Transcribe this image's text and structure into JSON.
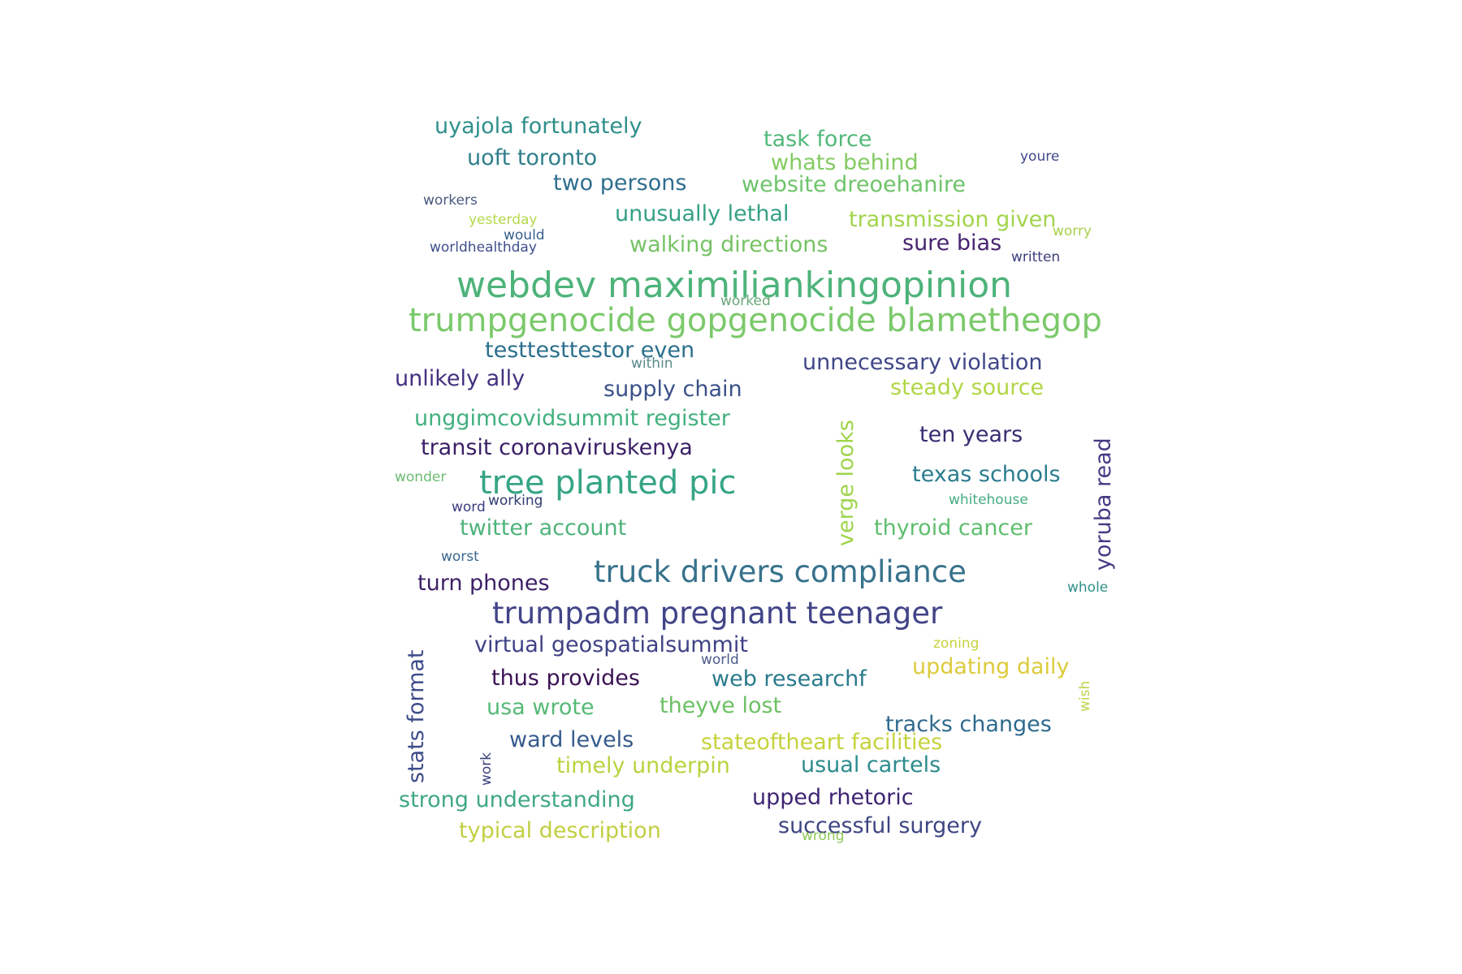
{
  "words": [
    {
      "text": "webdev maximiliankingopinion",
      "color": "#4db37a"
    },
    {
      "text": "trumpgenocide gopgenocide blamethegop",
      "color": "#7bc96b"
    },
    {
      "text": "truck drivers compliance",
      "color": "#37728c"
    },
    {
      "text": "trumpadm pregnant teenager",
      "color": "#414487"
    },
    {
      "text": "tree planted pic",
      "color": "#36a585"
    },
    {
      "text": "uyajola fortunately",
      "color": "#2f8f8b"
    },
    {
      "text": "task force",
      "color": "#52b87a"
    },
    {
      "text": "uoft toronto",
      "color": "#2f7f8c"
    },
    {
      "text": "whats behind",
      "color": "#84cb62"
    },
    {
      "text": "two persons",
      "color": "#2e6e8e"
    },
    {
      "text": "website dreoehanire",
      "color": "#6ec46a"
    },
    {
      "text": "youre",
      "color": "#3e4a89"
    },
    {
      "text": "workers",
      "color": "#48597f"
    },
    {
      "text": "unusually lethal",
      "color": "#35a085"
    },
    {
      "text": "transmission given",
      "color": "#a2d44c"
    },
    {
      "text": "yesterday",
      "color": "#b4d94a"
    },
    {
      "text": "would",
      "color": "#355f8d"
    },
    {
      "text": "worry",
      "color": "#a8d14c"
    },
    {
      "text": "worldhealthday",
      "color": "#3d4e8a"
    },
    {
      "text": "walking directions",
      "color": "#76c365"
    },
    {
      "text": "sure bias",
      "color": "#46246f"
    },
    {
      "text": "written",
      "color": "#3b3d7e"
    },
    {
      "text": "worked",
      "color": "#6aa87a"
    },
    {
      "text": "testtesttestor even",
      "color": "#2b6f8d"
    },
    {
      "text": "within",
      "color": "#5a8a8c"
    },
    {
      "text": "unnecessary violation",
      "color": "#3f4687"
    },
    {
      "text": "unlikely ally",
      "color": "#433080"
    },
    {
      "text": "supply chain",
      "color": "#3b5189"
    },
    {
      "text": "steady source",
      "color": "#b0d645"
    },
    {
      "text": "unggimcovidsummit register",
      "color": "#42b07e"
    },
    {
      "text": "transit coronaviruskenya",
      "color": "#3a1f66"
    },
    {
      "text": "verge looks",
      "color": "#9dd44a"
    },
    {
      "text": "ten years",
      "color": "#3a2c72"
    },
    {
      "text": "yoruba read",
      "color": "#443983"
    },
    {
      "text": "texas schools",
      "color": "#2a7c8e"
    },
    {
      "text": "wonder",
      "color": "#6dbb73"
    },
    {
      "text": "whitehouse",
      "color": "#45ad7f"
    },
    {
      "text": "word",
      "color": "#3b3d80"
    },
    {
      "text": "working",
      "color": "#2f3c70"
    },
    {
      "text": "twitter account",
      "color": "#4fb37b"
    },
    {
      "text": "thyroid cancer",
      "color": "#5fbe6e"
    },
    {
      "text": "worst",
      "color": "#3a6590"
    },
    {
      "text": "turn phones",
      "color": "#3d1f67"
    },
    {
      "text": "whole",
      "color": "#32908a"
    },
    {
      "text": "stats format",
      "color": "#3d4b89"
    },
    {
      "text": "virtual geospatialsummit",
      "color": "#3f4285"
    },
    {
      "text": "zoning",
      "color": "#c7d33b"
    },
    {
      "text": "world",
      "color": "#4b5a8a"
    },
    {
      "text": "updating daily",
      "color": "#dccb3c"
    },
    {
      "text": "thus provides",
      "color": "#3b1254"
    },
    {
      "text": "web researchf",
      "color": "#2a7a8c"
    },
    {
      "text": "wish",
      "color": "#bcd54a"
    },
    {
      "text": "usa wrote",
      "color": "#56ba76"
    },
    {
      "text": "theyve lost",
      "color": "#6cc064"
    },
    {
      "text": "tracks changes",
      "color": "#2f6a8e"
    },
    {
      "text": "ward levels",
      "color": "#365b8c"
    },
    {
      "text": "stateoftheart facilities",
      "color": "#c6d23c"
    },
    {
      "text": "work",
      "color": "#3d4380"
    },
    {
      "text": "timely underpin",
      "color": "#b7d43f"
    },
    {
      "text": "usual cartels",
      "color": "#2d8b8c"
    },
    {
      "text": "strong understanding",
      "color": "#40a883"
    },
    {
      "text": "upped rhetoric",
      "color": "#3d2472"
    },
    {
      "text": "typical description",
      "color": "#c1cf42"
    },
    {
      "text": "successful surgery",
      "color": "#3e4683"
    },
    {
      "text": "wrong",
      "color": "#8dc758"
    }
  ]
}
